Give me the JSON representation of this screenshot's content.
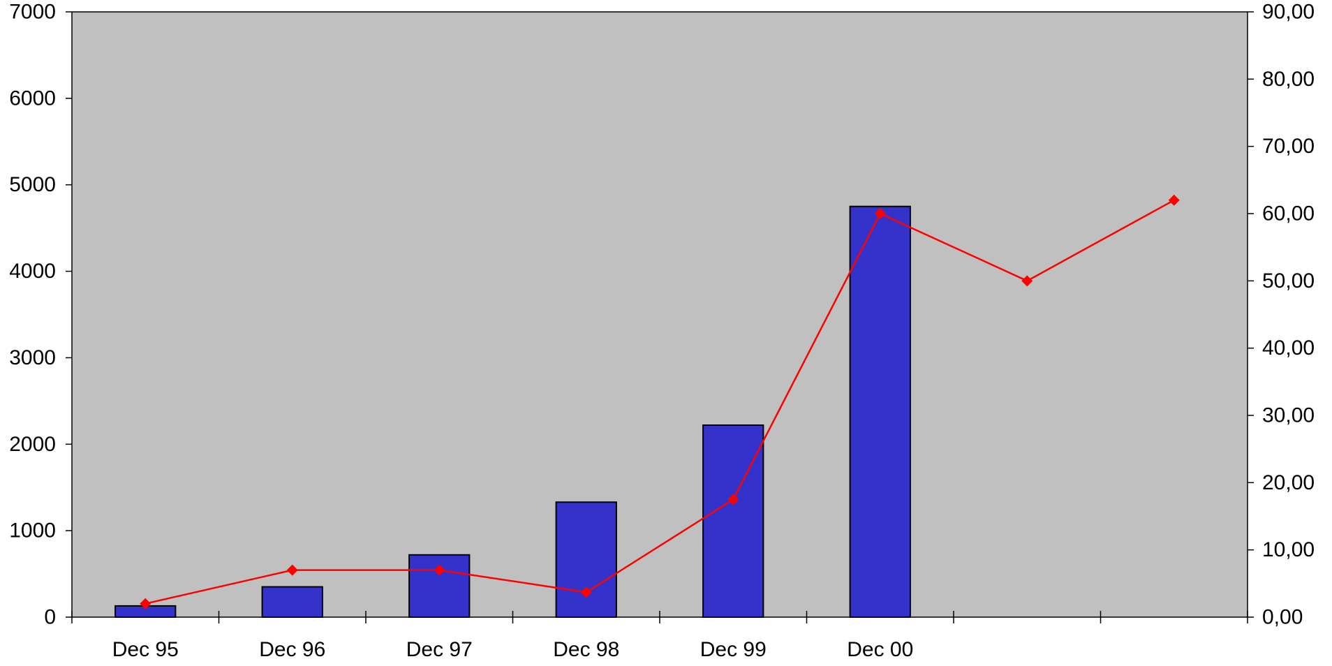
{
  "chart_data": {
    "type": "bar",
    "title": "",
    "xlabel": "",
    "ylabel": "",
    "ylabel_right": "",
    "legend": "none",
    "grid": false,
    "plot_background": "#c0c0c0",
    "categories": [
      "Dec 95",
      "Dec 96",
      "Dec 97",
      "Dec 98",
      "Dec 99",
      "Dec 00",
      "",
      ""
    ],
    "ylim": [
      0,
      7000
    ],
    "yticks": [
      "0",
      "1000",
      "2000",
      "3000",
      "4000",
      "5000",
      "6000",
      "7000"
    ],
    "ylim_right": [
      0,
      90
    ],
    "yticks_right": [
      "0,00",
      "10,00",
      "20,00",
      "30,00",
      "40,00",
      "50,00",
      "60,00",
      "70,00",
      "80,00",
      "90,00"
    ],
    "series": [
      {
        "type": "bar",
        "axis": "left",
        "color": "#3333cc",
        "values": [
          130,
          350,
          720,
          1330,
          2220,
          4750,
          null,
          null
        ]
      },
      {
        "type": "line",
        "axis": "right",
        "color": "#ff0000",
        "marker": "diamond",
        "values": [
          2.0,
          7.0,
          7.0,
          3.7,
          17.5,
          60.0,
          50.0,
          62.0
        ]
      }
    ]
  }
}
